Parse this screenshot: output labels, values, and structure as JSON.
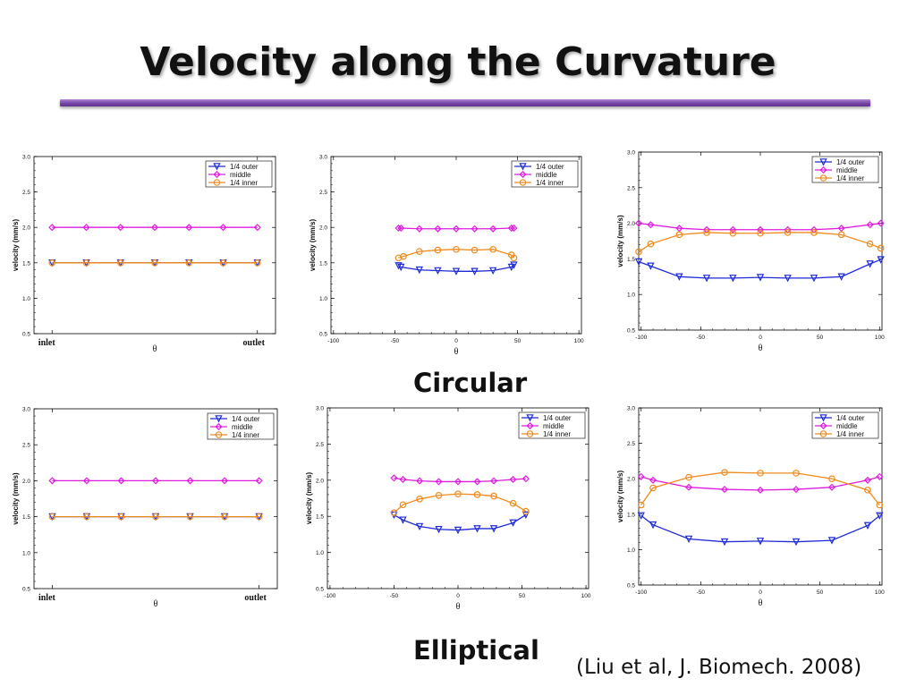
{
  "slide": {
    "title": "Velocity along the Curvature",
    "label_circular": "Circular",
    "label_elliptical": "Elliptical",
    "citation": "(Liu et al, J. Biomech. 2008)"
  },
  "colors": {
    "outer": "#1f2bd6",
    "middle": "#e01be0",
    "inner": "#f08a1c",
    "title_rule": "#7a4aa8"
  },
  "chart_data": [
    {
      "type": "line",
      "group": "Circular",
      "xlabel": "θ",
      "ylabel": "velocity (mm/s)",
      "xcategorical": true,
      "xlim": [
        0,
        6
      ],
      "ylim": [
        0.5,
        3.0
      ],
      "yticks": [
        0.5,
        1.0,
        1.5,
        2.0,
        2.5,
        3.0
      ],
      "xticks": [
        {
          "v": 0,
          "label": "inlet"
        },
        {
          "v": 6,
          "label": "outlet"
        }
      ],
      "legend": "top-right",
      "series": [
        {
          "name": "1/4 outer",
          "marker": "triangle",
          "color": "#1f2bd6",
          "x": [
            0,
            1,
            2,
            3,
            4,
            5,
            6
          ],
          "y": [
            1.5,
            1.5,
            1.5,
            1.5,
            1.5,
            1.5,
            1.5
          ]
        },
        {
          "name": "middle",
          "marker": "diamond",
          "color": "#e01be0",
          "x": [
            0,
            1,
            2,
            3,
            4,
            5,
            6
          ],
          "y": [
            2.0,
            2.0,
            2.0,
            2.0,
            2.0,
            2.0,
            2.0
          ]
        },
        {
          "name": "1/4 inner",
          "marker": "circle",
          "color": "#f08a1c",
          "x": [
            0,
            1,
            2,
            3,
            4,
            5,
            6
          ],
          "y": [
            1.5,
            1.5,
            1.5,
            1.5,
            1.5,
            1.5,
            1.5
          ]
        }
      ]
    },
    {
      "type": "line",
      "group": "Circular",
      "xlabel": "θ",
      "ylabel": "velocity (mm/s)",
      "xlim": [
        -100,
        100
      ],
      "ylim": [
        0.5,
        3.0
      ],
      "yticks": [
        0.5,
        1.0,
        1.5,
        2.0,
        2.5,
        3.0
      ],
      "xticks": [
        {
          "v": -100,
          "label": "-100"
        },
        {
          "v": -50,
          "label": "-50"
        },
        {
          "v": 0,
          "label": "0"
        },
        {
          "v": 50,
          "label": "50"
        },
        {
          "v": 100,
          "label": "100"
        }
      ],
      "legend": "top-right",
      "series": [
        {
          "name": "1/4 outer",
          "marker": "triangle",
          "color": "#1f2bd6",
          "x": [
            -47,
            -45,
            -30,
            -15,
            0,
            15,
            30,
            45,
            47
          ],
          "y": [
            1.46,
            1.44,
            1.4,
            1.39,
            1.38,
            1.38,
            1.39,
            1.44,
            1.47
          ]
        },
        {
          "name": "middle",
          "marker": "diamond",
          "color": "#e01be0",
          "x": [
            -47,
            -45,
            -30,
            -15,
            0,
            15,
            30,
            45,
            47
          ],
          "y": [
            1.99,
            1.99,
            1.98,
            1.98,
            1.98,
            1.98,
            1.98,
            1.99,
            1.99
          ]
        },
        {
          "name": "1/4 inner",
          "marker": "circle",
          "color": "#f08a1c",
          "x": [
            -47,
            -43,
            -30,
            -15,
            0,
            15,
            30,
            45,
            47
          ],
          "y": [
            1.57,
            1.59,
            1.66,
            1.68,
            1.69,
            1.68,
            1.69,
            1.61,
            1.57
          ]
        }
      ]
    },
    {
      "type": "line",
      "group": "Circular",
      "xlabel": "θ",
      "ylabel": "velocity (mm/s)",
      "xlim": [
        -100,
        100
      ],
      "ylim": [
        0.5,
        3.0
      ],
      "yticks": [
        0.5,
        1.0,
        1.5,
        2.0,
        2.5,
        3.0
      ],
      "xticks": [
        {
          "v": -100,
          "label": "-100"
        },
        {
          "v": -50,
          "label": "-50"
        },
        {
          "v": 0,
          "label": "0"
        },
        {
          "v": 50,
          "label": "50"
        },
        {
          "v": 100,
          "label": "100"
        }
      ],
      "legend": "top-right",
      "series": [
        {
          "name": "1/4 outer",
          "marker": "triangle",
          "color": "#1f2bd6",
          "x": [
            -102,
            -92,
            -68,
            -45,
            -23,
            0,
            23,
            45,
            68,
            92,
            101
          ],
          "y": [
            1.46,
            1.4,
            1.25,
            1.23,
            1.23,
            1.24,
            1.23,
            1.23,
            1.25,
            1.43,
            1.49
          ]
        },
        {
          "name": "middle",
          "marker": "diamond",
          "color": "#e01be0",
          "x": [
            -102,
            -92,
            -68,
            -45,
            -23,
            0,
            23,
            45,
            68,
            92,
            101
          ],
          "y": [
            2.0,
            1.98,
            1.93,
            1.91,
            1.91,
            1.91,
            1.91,
            1.91,
            1.93,
            1.98,
            2.0
          ]
        },
        {
          "name": "1/4 inner",
          "marker": "circle",
          "color": "#f08a1c",
          "x": [
            -102,
            -92,
            -68,
            -45,
            -23,
            0,
            23,
            45,
            68,
            92,
            101
          ],
          "y": [
            1.6,
            1.71,
            1.84,
            1.87,
            1.86,
            1.86,
            1.87,
            1.87,
            1.84,
            1.71,
            1.65
          ]
        }
      ]
    },
    {
      "type": "line",
      "group": "Elliptical",
      "xlabel": "θ",
      "ylabel": "velocity (mm/s)",
      "xcategorical": true,
      "xlim": [
        0,
        6
      ],
      "ylim": [
        0.5,
        3.0
      ],
      "yticks": [
        0.5,
        1.0,
        1.5,
        2.0,
        2.5,
        3.0
      ],
      "xticks": [
        {
          "v": 0,
          "label": "inlet"
        },
        {
          "v": 6,
          "label": "outlet"
        }
      ],
      "legend": "top-right",
      "series": [
        {
          "name": "1/4 outer",
          "marker": "triangle",
          "color": "#1f2bd6",
          "x": [
            0,
            1,
            2,
            3,
            4,
            5,
            6
          ],
          "y": [
            1.5,
            1.5,
            1.5,
            1.5,
            1.5,
            1.5,
            1.5
          ]
        },
        {
          "name": "middle",
          "marker": "diamond",
          "color": "#e01be0",
          "x": [
            0,
            1,
            2,
            3,
            4,
            5,
            6
          ],
          "y": [
            2.0,
            2.0,
            2.0,
            2.0,
            2.0,
            2.0,
            2.0
          ]
        },
        {
          "name": "1/4 inner",
          "marker": "circle",
          "color": "#f08a1c",
          "x": [
            0,
            1,
            2,
            3,
            4,
            5,
            6
          ],
          "y": [
            1.5,
            1.5,
            1.5,
            1.5,
            1.5,
            1.5,
            1.5
          ]
        }
      ]
    },
    {
      "type": "line",
      "group": "Elliptical",
      "xlabel": "θ",
      "ylabel": "velocity (mm/s)",
      "xlim": [
        -100,
        100
      ],
      "ylim": [
        0.5,
        3.0
      ],
      "yticks": [
        0.5,
        1.0,
        1.5,
        2.0,
        2.5,
        3.0
      ],
      "xticks": [
        {
          "v": -100,
          "label": "-100"
        },
        {
          "v": -50,
          "label": "-50"
        },
        {
          "v": 0,
          "label": "0"
        },
        {
          "v": 50,
          "label": "50"
        },
        {
          "v": 100,
          "label": "100"
        }
      ],
      "legend": "top-right",
      "series": [
        {
          "name": "1/4 outer",
          "marker": "triangle",
          "color": "#1f2bd6",
          "x": [
            -50,
            -43,
            -30,
            -15,
            0,
            15,
            28,
            43,
            53
          ],
          "y": [
            1.52,
            1.45,
            1.36,
            1.32,
            1.31,
            1.33,
            1.33,
            1.41,
            1.52
          ]
        },
        {
          "name": "middle",
          "marker": "diamond",
          "color": "#e01be0",
          "x": [
            -50,
            -43,
            -30,
            -15,
            0,
            15,
            28,
            43,
            53
          ],
          "y": [
            2.03,
            2.01,
            1.99,
            1.98,
            1.98,
            1.98,
            1.99,
            2.01,
            2.02
          ]
        },
        {
          "name": "1/4 inner",
          "marker": "circle",
          "color": "#f08a1c",
          "x": [
            -50,
            -43,
            -30,
            -15,
            0,
            15,
            28,
            43,
            53
          ],
          "y": [
            1.55,
            1.66,
            1.74,
            1.79,
            1.81,
            1.8,
            1.78,
            1.68,
            1.57
          ]
        }
      ]
    },
    {
      "type": "line",
      "group": "Elliptical",
      "xlabel": "θ",
      "ylabel": "velocity (mm/s)",
      "xlim": [
        -100,
        100
      ],
      "ylim": [
        0.5,
        3.0
      ],
      "yticks": [
        0.5,
        1.0,
        1.5,
        2.0,
        2.5,
        3.0
      ],
      "xticks": [
        {
          "v": -100,
          "label": "-100"
        },
        {
          "v": -50,
          "label": "-50"
        },
        {
          "v": 0,
          "label": "0"
        },
        {
          "v": 50,
          "label": "50"
        },
        {
          "v": 100,
          "label": "100"
        }
      ],
      "legend": "top-right",
      "series": [
        {
          "name": "1/4 outer",
          "marker": "triangle",
          "color": "#1f2bd6",
          "x": [
            -100,
            -90,
            -60,
            -30,
            0,
            30,
            60,
            90,
            100
          ],
          "y": [
            1.48,
            1.35,
            1.15,
            1.11,
            1.12,
            1.11,
            1.13,
            1.34,
            1.48
          ]
        },
        {
          "name": "middle",
          "marker": "diamond",
          "color": "#e01be0",
          "x": [
            -100,
            -90,
            -60,
            -30,
            0,
            30,
            60,
            90,
            100
          ],
          "y": [
            2.03,
            1.98,
            1.88,
            1.85,
            1.84,
            1.85,
            1.88,
            1.98,
            2.03
          ]
        },
        {
          "name": "1/4 inner",
          "marker": "circle",
          "color": "#f08a1c",
          "x": [
            -100,
            -90,
            -60,
            -30,
            0,
            30,
            60,
            90,
            100
          ],
          "y": [
            1.63,
            1.87,
            2.02,
            2.09,
            2.08,
            2.08,
            2.0,
            1.84,
            1.63
          ]
        }
      ]
    }
  ]
}
